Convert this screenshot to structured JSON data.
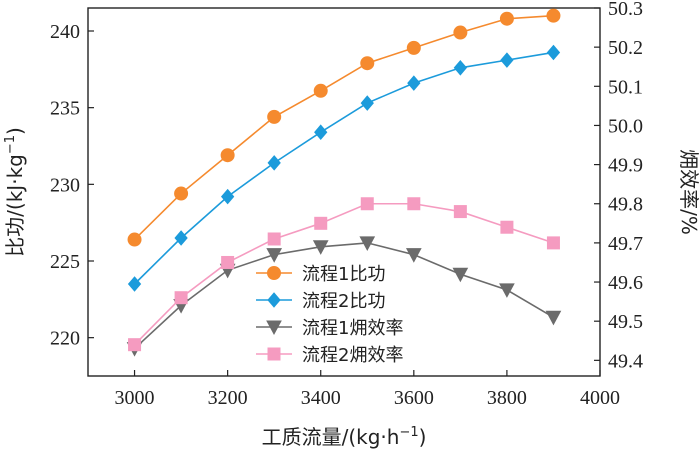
{
  "chart_data": {
    "type": "line",
    "xlabel": "工质流量/(kg·h",
    "xlabel_sup": "−1",
    "xlabel_tail": ")",
    "ylabel_left": "比功/(kJ·kg",
    "ylabel_left_sup": "−1",
    "ylabel_left_tail": ")",
    "ylabel_right": "㶲效率/%",
    "xlim": [
      2900,
      4000
    ],
    "ylim_left": [
      217.5,
      241.5
    ],
    "ylim_right": [
      49.36,
      50.3
    ],
    "x_ticks": [
      "3000",
      "3200",
      "3400",
      "3600",
      "3800",
      "4000"
    ],
    "y_left_ticks": [
      "220",
      "225",
      "230",
      "235",
      "240"
    ],
    "y_right_ticks": [
      "49.4",
      "49.5",
      "49.6",
      "49.7",
      "49.8",
      "49.9",
      "50.0",
      "50.1",
      "50.2",
      "50.3"
    ],
    "x": [
      3000,
      3100,
      3200,
      3300,
      3400,
      3500,
      3600,
      3700,
      3800,
      3900
    ],
    "legend_position": "lower-center",
    "series": [
      {
        "name": "流程1比功",
        "axis": "left",
        "marker": "circle",
        "color": "#F58A2E",
        "line_color": "#F58A2E",
        "values": [
          226.4,
          229.4,
          231.9,
          234.4,
          236.1,
          237.9,
          238.9,
          239.9,
          240.8,
          241.0
        ]
      },
      {
        "name": "流程2比功",
        "axis": "left",
        "marker": "diamond",
        "color": "#1C9BDB",
        "line_color": "#1C9BDB",
        "values": [
          223.5,
          226.5,
          229.2,
          231.4,
          233.4,
          235.3,
          236.6,
          237.6,
          238.1,
          238.6
        ]
      },
      {
        "name": "流程1㶲效率",
        "axis": "right",
        "marker": "triangle-down",
        "color": "#6B6B6B",
        "line_color": "#6B6B6B",
        "values": [
          49.43,
          49.54,
          49.63,
          49.67,
          49.69,
          49.7,
          49.67,
          49.62,
          49.58,
          49.51
        ]
      },
      {
        "name": "流程2㶲效率",
        "axis": "right",
        "marker": "square",
        "color": "#F59BC0",
        "line_color": "#F59BC0",
        "values": [
          49.44,
          49.56,
          49.65,
          49.71,
          49.75,
          49.8,
          49.8,
          49.78,
          49.74,
          49.7
        ]
      }
    ]
  }
}
